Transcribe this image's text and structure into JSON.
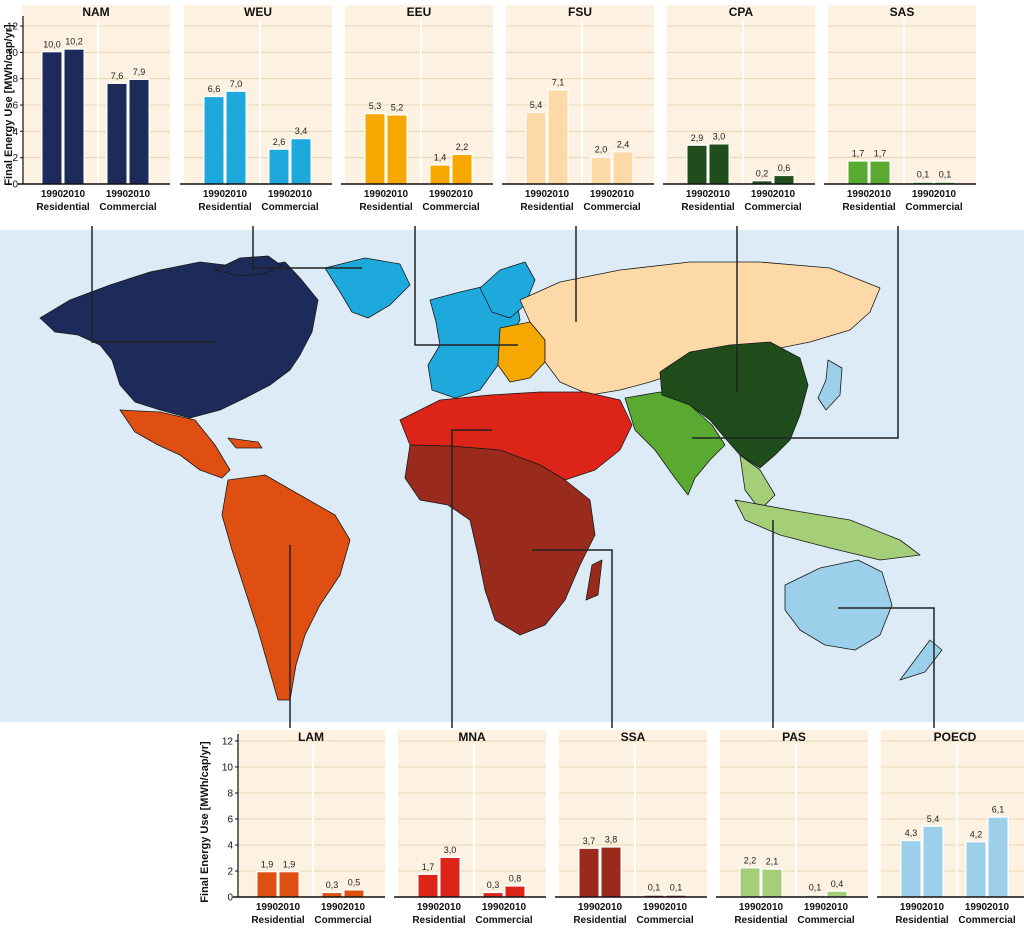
{
  "chart_data": {
    "type": "bar",
    "ylabel": "Final Energy Use [MWh/cap/yr]",
    "ylim": [
      0,
      12
    ],
    "yticks": [
      0,
      2,
      4,
      6,
      8,
      10,
      12
    ],
    "years": [
      "1990",
      "2010"
    ],
    "sectors": [
      "Residential",
      "Commercial"
    ],
    "regions": [
      {
        "name": "NAM",
        "color": "#1c2b5a",
        "residential": [
          "10,0",
          "10,2"
        ],
        "commercial": [
          "7,6",
          "7,9"
        ]
      },
      {
        "name": "WEU",
        "color": "#1ea9dc",
        "residential": [
          "6,6",
          "7,0"
        ],
        "commercial": [
          "2,6",
          "3,4"
        ]
      },
      {
        "name": "EEU",
        "color": "#f6a800",
        "residential": [
          "5,3",
          "5,2"
        ],
        "commercial": [
          "1,4",
          "2,2"
        ]
      },
      {
        "name": "FSU",
        "color": "#fdd9a8",
        "residential": [
          "5,4",
          "7,1"
        ],
        "commercial": [
          "2,0",
          "2,4"
        ]
      },
      {
        "name": "CPA",
        "color": "#1f4d1c",
        "residential": [
          "2,9",
          "3,0"
        ],
        "commercial": [
          "0,2",
          "0,6"
        ]
      },
      {
        "name": "SAS",
        "color": "#5aaa32",
        "residential": [
          "1,7",
          "1,7"
        ],
        "commercial": [
          "0,1",
          "0,1"
        ]
      },
      {
        "name": "LAM",
        "color": "#e04f12",
        "residential": [
          "1,9",
          "1,9"
        ],
        "commercial": [
          "0,3",
          "0,5"
        ]
      },
      {
        "name": "MNA",
        "color": "#dc2418",
        "residential": [
          "1,7",
          "3,0"
        ],
        "commercial": [
          "0,3",
          "0,8"
        ]
      },
      {
        "name": "SSA",
        "color": "#992a1c",
        "residential": [
          "3,7",
          "3,8"
        ],
        "commercial": [
          "0,1",
          "0,1"
        ]
      },
      {
        "name": "PAS",
        "color": "#a4cf78",
        "residential": [
          "2,2",
          "2,1"
        ],
        "commercial": [
          "0,1",
          "0,4"
        ]
      },
      {
        "name": "POECD",
        "color": "#9ccfea",
        "residential": [
          "4,3",
          "5,4"
        ],
        "commercial": [
          "4,2",
          "6,1"
        ]
      }
    ]
  },
  "map": {
    "ocean_color": "#dcebf6",
    "leader_color": "#222222"
  }
}
